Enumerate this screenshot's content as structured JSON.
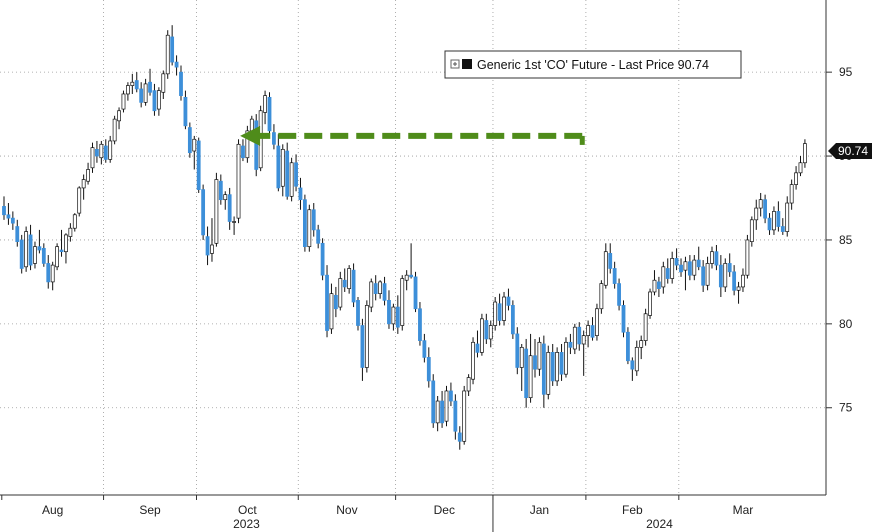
{
  "chart_data": {
    "type": "candlestick",
    "title": "",
    "xlabel": "",
    "ylabel": "",
    "legend": {
      "text": "Generic 1st 'CO' Future - Last Price 90.74",
      "placement": "top-right"
    },
    "last_price_label": "90.74",
    "ylim": [
      69.8,
      99.3
    ],
    "y_ticks": [
      75,
      80,
      85,
      90,
      95
    ],
    "y_tick_labels": [
      "75",
      "80",
      "85",
      "90",
      "95"
    ],
    "month_labels": [
      "Aug",
      "Sep",
      "Oct",
      "Nov",
      "Dec",
      "Jan",
      "Feb",
      "Mar"
    ],
    "year_labels": [
      "2023",
      "2024"
    ],
    "grid": true,
    "colors": {
      "up": "#ffffff",
      "down": "#3d8fd9",
      "wick": "#111111",
      "arrow": "#4f8c1a",
      "grid": "#9a9a9a"
    },
    "annotation": {
      "type": "dashed-arrow",
      "from_price": 91.2,
      "to_price": 91.2,
      "from_session": 130,
      "to_session": 52
    },
    "session_start": "2023-07-31",
    "month_start_sessions": [
      0,
      23,
      44,
      67,
      89,
      111,
      132,
      153
    ],
    "candles": [
      [
        0,
        87.0,
        87.6,
        86.2,
        86.5
      ],
      [
        1,
        86.5,
        87.2,
        85.9,
        86.3
      ],
      [
        2,
        86.3,
        86.7,
        85.6,
        86.0
      ],
      [
        3,
        85.8,
        86.2,
        84.6,
        84.9
      ],
      [
        4,
        85.0,
        85.3,
        83.0,
        83.3
      ],
      [
        5,
        83.4,
        85.8,
        83.1,
        85.5
      ],
      [
        6,
        85.3,
        85.9,
        83.2,
        83.5
      ],
      [
        7,
        83.6,
        84.9,
        83.3,
        84.6
      ],
      [
        8,
        84.6,
        85.6,
        84.2,
        84.4
      ],
      [
        9,
        84.5,
        84.8,
        83.4,
        83.6
      ],
      [
        10,
        83.6,
        84.1,
        82.1,
        82.5
      ],
      [
        11,
        82.5,
        83.7,
        82.0,
        83.5
      ],
      [
        12,
        83.4,
        84.8,
        83.2,
        84.6
      ],
      [
        13,
        84.4,
        85.6,
        84.0,
        84.3
      ],
      [
        14,
        84.3,
        85.4,
        83.6,
        85.3
      ],
      [
        15,
        85.2,
        86.0,
        84.9,
        85.7
      ],
      [
        16,
        85.7,
        86.6,
        85.5,
        86.5
      ],
      [
        17,
        86.6,
        88.2,
        86.4,
        88.1
      ],
      [
        18,
        88.1,
        88.9,
        87.4,
        88.6
      ],
      [
        19,
        88.5,
        89.6,
        88.3,
        89.2
      ],
      [
        20,
        89.3,
        90.8,
        89.0,
        90.5
      ],
      [
        21,
        90.4,
        90.9,
        89.6,
        90.0
      ],
      [
        22,
        89.9,
        90.9,
        89.5,
        90.7
      ],
      [
        23,
        90.6,
        91.0,
        89.6,
        89.8
      ],
      [
        24,
        89.8,
        91.2,
        89.6,
        90.9
      ],
      [
        25,
        90.9,
        92.4,
        90.7,
        92.2
      ],
      [
        26,
        92.1,
        92.9,
        91.6,
        92.7
      ],
      [
        27,
        92.8,
        93.9,
        92.6,
        93.7
      ],
      [
        28,
        93.7,
        94.4,
        93.3,
        94.2
      ],
      [
        29,
        94.2,
        94.9,
        93.7,
        94.4
      ],
      [
        30,
        94.5,
        95.0,
        93.8,
        94.0
      ],
      [
        31,
        94.0,
        94.4,
        92.9,
        93.2
      ],
      [
        32,
        93.2,
        94.6,
        93.0,
        94.3
      ],
      [
        33,
        94.4,
        95.2,
        93.6,
        93.8
      ],
      [
        34,
        93.9,
        94.3,
        92.4,
        92.7
      ],
      [
        35,
        92.8,
        94.1,
        92.4,
        93.9
      ],
      [
        36,
        93.8,
        95.1,
        93.4,
        94.9
      ],
      [
        37,
        94.9,
        97.5,
        94.6,
        97.2
      ],
      [
        38,
        97.1,
        97.8,
        95.4,
        95.6
      ],
      [
        39,
        95.6,
        96.0,
        94.8,
        95.3
      ],
      [
        40,
        95.0,
        95.4,
        93.3,
        93.6
      ],
      [
        41,
        93.5,
        93.9,
        91.6,
        91.8
      ],
      [
        42,
        91.7,
        92.0,
        89.9,
        90.2
      ],
      [
        43,
        90.3,
        91.2,
        89.2,
        91.0
      ],
      [
        44,
        90.9,
        91.1,
        87.8,
        88.0
      ],
      [
        45,
        88.0,
        88.3,
        85.0,
        85.3
      ],
      [
        46,
        85.2,
        85.8,
        83.5,
        84.1
      ],
      [
        47,
        84.2,
        86.3,
        83.7,
        84.7
      ],
      [
        48,
        84.8,
        89.0,
        84.6,
        88.6
      ],
      [
        49,
        88.5,
        88.9,
        87.1,
        87.4
      ],
      [
        50,
        87.4,
        87.9,
        86.8,
        87.7
      ],
      [
        51,
        87.7,
        88.1,
        85.6,
        86.1
      ],
      [
        52,
        86.1,
        86.4,
        85.3,
        86.1
      ],
      [
        53,
        86.3,
        91.0,
        86.0,
        90.7
      ],
      [
        54,
        90.6,
        91.0,
        89.7,
        89.9
      ],
      [
        55,
        89.9,
        91.8,
        89.6,
        91.5
      ],
      [
        56,
        91.5,
        92.4,
        91.2,
        92.2
      ],
      [
        57,
        92.1,
        92.5,
        88.8,
        89.2
      ],
      [
        58,
        89.3,
        93.0,
        89.1,
        92.7
      ],
      [
        59,
        92.6,
        93.9,
        91.9,
        93.6
      ],
      [
        60,
        93.5,
        93.8,
        91.2,
        91.5
      ],
      [
        61,
        91.4,
        91.9,
        90.4,
        90.7
      ],
      [
        62,
        90.6,
        91.3,
        87.9,
        88.1
      ],
      [
        63,
        88.2,
        90.7,
        87.6,
        90.4
      ],
      [
        64,
        90.3,
        90.8,
        87.4,
        87.6
      ],
      [
        65,
        87.6,
        89.9,
        87.3,
        89.6
      ],
      [
        66,
        89.6,
        90.1,
        87.9,
        88.2
      ],
      [
        67,
        88.1,
        88.7,
        86.8,
        87.4
      ],
      [
        68,
        87.4,
        87.7,
        84.3,
        84.6
      ],
      [
        69,
        84.6,
        87.1,
        84.3,
        86.8
      ],
      [
        70,
        86.8,
        87.2,
        85.2,
        85.6
      ],
      [
        71,
        85.6,
        85.9,
        84.5,
        84.8
      ],
      [
        72,
        84.8,
        85.1,
        82.6,
        82.9
      ],
      [
        73,
        82.9,
        83.5,
        79.2,
        79.6
      ],
      [
        74,
        79.7,
        82.4,
        79.4,
        81.8
      ],
      [
        75,
        81.7,
        82.2,
        80.4,
        80.9
      ],
      [
        76,
        81.0,
        83.1,
        80.8,
        82.7
      ],
      [
        77,
        82.6,
        83.3,
        81.9,
        82.2
      ],
      [
        78,
        82.1,
        83.5,
        81.8,
        83.3
      ],
      [
        79,
        83.2,
        83.6,
        81.0,
        81.3
      ],
      [
        80,
        81.4,
        81.6,
        79.6,
        79.9
      ],
      [
        81,
        79.9,
        80.3,
        76.6,
        77.4
      ],
      [
        82,
        77.4,
        81.4,
        77.1,
        81.1
      ],
      [
        83,
        81.0,
        82.7,
        80.7,
        82.5
      ],
      [
        84,
        82.4,
        82.9,
        81.4,
        81.8
      ],
      [
        85,
        81.8,
        82.6,
        81.5,
        82.5
      ],
      [
        86,
        82.4,
        82.8,
        81.1,
        81.4
      ],
      [
        87,
        81.4,
        82.0,
        79.7,
        80.0
      ],
      [
        88,
        80.0,
        81.2,
        79.6,
        81.0
      ],
      [
        89,
        81.0,
        81.7,
        79.4,
        79.8
      ],
      [
        90,
        79.9,
        82.9,
        79.6,
        82.7
      ],
      [
        91,
        82.6,
        83.2,
        82.0,
        82.9
      ],
      [
        92,
        82.9,
        84.8,
        82.7,
        82.8
      ],
      [
        93,
        82.8,
        83.1,
        80.7,
        80.9
      ],
      [
        94,
        80.9,
        81.3,
        78.7,
        79.0
      ],
      [
        95,
        79.0,
        79.4,
        77.7,
        78.0
      ],
      [
        96,
        78.0,
        78.6,
        76.2,
        76.6
      ],
      [
        97,
        76.6,
        77.0,
        73.8,
        74.1
      ],
      [
        98,
        74.1,
        75.7,
        73.6,
        75.4
      ],
      [
        99,
        75.4,
        76.0,
        73.8,
        74.1
      ],
      [
        100,
        74.2,
        76.3,
        73.9,
        76.0
      ],
      [
        101,
        76.0,
        76.5,
        75.1,
        75.4
      ],
      [
        102,
        75.4,
        75.8,
        73.1,
        73.6
      ],
      [
        103,
        73.5,
        73.9,
        72.5,
        73.0
      ],
      [
        104,
        73.0,
        76.3,
        72.8,
        76.0
      ],
      [
        105,
        76.0,
        77.0,
        75.7,
        76.8
      ],
      [
        106,
        76.7,
        79.2,
        76.4,
        78.9
      ],
      [
        107,
        78.8,
        79.6,
        78.0,
        78.3
      ],
      [
        108,
        78.3,
        80.6,
        78.1,
        80.3
      ],
      [
        109,
        80.2,
        80.6,
        78.8,
        79.1
      ],
      [
        110,
        79.1,
        80.2,
        78.6,
        79.9
      ],
      [
        111,
        79.9,
        81.6,
        79.6,
        81.3
      ],
      [
        112,
        81.2,
        81.8,
        79.9,
        80.2
      ],
      [
        113,
        80.2,
        81.9,
        79.9,
        81.6
      ],
      [
        114,
        81.6,
        82.1,
        80.8,
        81.1
      ],
      [
        115,
        81.1,
        81.4,
        79.1,
        79.4
      ],
      [
        116,
        79.4,
        79.8,
        77.0,
        77.4
      ],
      [
        117,
        77.4,
        78.8,
        76.0,
        78.6
      ],
      [
        118,
        78.5,
        79.1,
        75.0,
        75.6
      ],
      [
        119,
        75.6,
        79.4,
        75.3,
        78.1
      ],
      [
        120,
        78.1,
        79.1,
        76.8,
        77.3
      ],
      [
        121,
        77.3,
        79.2,
        76.9,
        78.9
      ],
      [
        122,
        78.8,
        79.3,
        75.0,
        75.8
      ],
      [
        123,
        75.8,
        78.7,
        75.5,
        78.3
      ],
      [
        124,
        78.3,
        78.8,
        76.3,
        76.6
      ],
      [
        125,
        76.6,
        78.6,
        76.3,
        78.3
      ],
      [
        126,
        78.3,
        78.8,
        76.6,
        77.0
      ],
      [
        127,
        77.0,
        79.2,
        76.8,
        78.9
      ],
      [
        128,
        78.9,
        79.4,
        78.2,
        78.6
      ],
      [
        129,
        78.5,
        80.0,
        78.2,
        79.8
      ],
      [
        130,
        79.8,
        80.1,
        78.4,
        78.8
      ],
      [
        131,
        78.8,
        79.6,
        76.9,
        79.3
      ],
      [
        132,
        79.3,
        80.2,
        78.6,
        79.9
      ],
      [
        133,
        79.9,
        80.4,
        79.0,
        79.2
      ],
      [
        134,
        79.3,
        81.2,
        79.0,
        80.9
      ],
      [
        135,
        80.9,
        82.6,
        80.6,
        82.4
      ],
      [
        136,
        82.3,
        84.8,
        82.1,
        84.3
      ],
      [
        137,
        84.2,
        84.8,
        83.0,
        83.3
      ],
      [
        138,
        83.3,
        83.7,
        82.1,
        82.4
      ],
      [
        139,
        82.4,
        82.7,
        80.8,
        81.1
      ],
      [
        140,
        81.1,
        81.4,
        79.2,
        79.5
      ],
      [
        141,
        79.5,
        79.8,
        77.6,
        77.8
      ],
      [
        142,
        77.8,
        78.0,
        76.6,
        77.3
      ],
      [
        143,
        77.2,
        79.0,
        76.9,
        78.6
      ],
      [
        144,
        78.6,
        79.3,
        77.9,
        79.0
      ],
      [
        145,
        79.0,
        80.9,
        78.7,
        80.6
      ],
      [
        146,
        80.5,
        82.1,
        80.3,
        81.9
      ],
      [
        147,
        81.9,
        83.2,
        81.7,
        82.6
      ],
      [
        148,
        82.5,
        82.8,
        81.6,
        82.1
      ],
      [
        149,
        82.2,
        83.7,
        81.8,
        83.4
      ],
      [
        150,
        83.3,
        83.9,
        82.4,
        82.7
      ],
      [
        151,
        82.7,
        84.3,
        82.4,
        83.9
      ],
      [
        152,
        83.9,
        84.5,
        83.2,
        83.5
      ],
      [
        153,
        83.5,
        83.9,
        82.8,
        83.1
      ],
      [
        154,
        83.2,
        84.0,
        82.0,
        83.7
      ],
      [
        155,
        83.7,
        84.1,
        82.6,
        82.9
      ],
      [
        156,
        82.9,
        84.1,
        82.6,
        83.8
      ],
      [
        157,
        83.8,
        84.6,
        83.2,
        83.4
      ],
      [
        158,
        83.4,
        83.8,
        81.9,
        82.3
      ],
      [
        159,
        82.3,
        84.0,
        82.0,
        83.6
      ],
      [
        160,
        83.6,
        84.6,
        83.3,
        84.3
      ],
      [
        161,
        84.3,
        84.7,
        83.2,
        83.5
      ],
      [
        162,
        83.5,
        84.1,
        81.6,
        82.2
      ],
      [
        163,
        82.2,
        83.9,
        81.9,
        83.6
      ],
      [
        164,
        83.6,
        84.2,
        82.8,
        83.1
      ],
      [
        165,
        83.1,
        83.5,
        81.7,
        82.0
      ],
      [
        166,
        82.0,
        82.5,
        81.2,
        82.2
      ],
      [
        167,
        82.2,
        83.3,
        81.9,
        82.9
      ],
      [
        168,
        82.9,
        85.3,
        82.7,
        85.0
      ],
      [
        169,
        84.9,
        86.4,
        84.6,
        86.2
      ],
      [
        170,
        86.2,
        87.4,
        85.6,
        86.9
      ],
      [
        171,
        86.9,
        87.8,
        86.4,
        87.4
      ],
      [
        172,
        87.4,
        87.7,
        86.0,
        86.3
      ],
      [
        173,
        86.3,
        86.6,
        85.3,
        85.6
      ],
      [
        174,
        85.6,
        87.0,
        85.3,
        86.7
      ],
      [
        175,
        86.7,
        87.3,
        85.5,
        85.8
      ],
      [
        176,
        85.8,
        86.3,
        85.3,
        85.5
      ],
      [
        177,
        85.5,
        87.6,
        85.2,
        87.2
      ],
      [
        178,
        87.2,
        88.6,
        86.8,
        88.3
      ],
      [
        179,
        88.3,
        89.4,
        88.0,
        89.0
      ],
      [
        180,
        89.0,
        90.0,
        88.8,
        89.6
      ],
      [
        181,
        89.6,
        91.0,
        89.3,
        90.74
      ]
    ]
  }
}
